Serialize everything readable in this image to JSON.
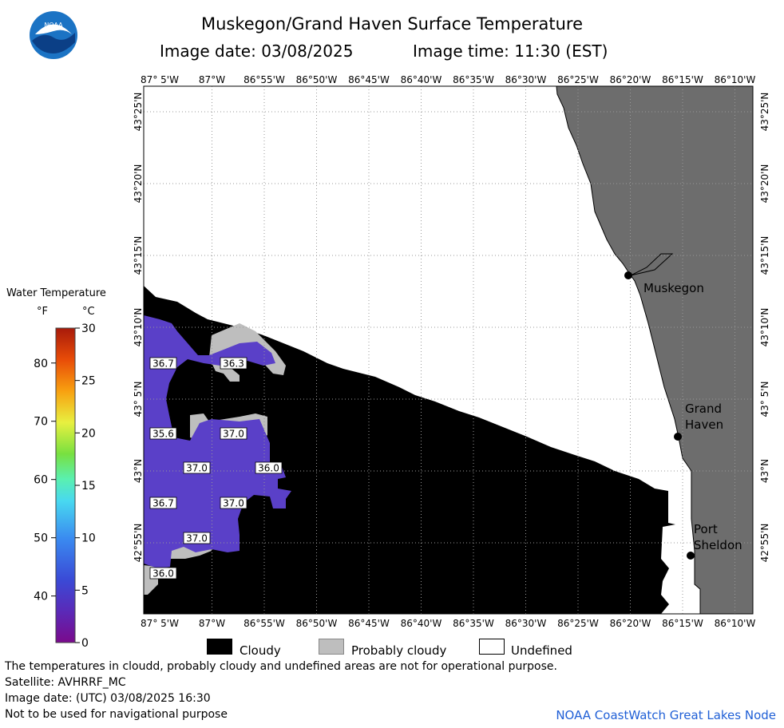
{
  "header": {
    "title": "Muskegon/Grand Haven Surface Temperature",
    "image_date": "Image date: 03/08/2025",
    "image_time": "Image time: 11:30 (EST)"
  },
  "logo": {
    "text": "NOAA"
  },
  "legend": {
    "title": "Water Temperature",
    "unit_f": "°F",
    "unit_c": "°C",
    "f_ticks": [
      "80",
      "70",
      "60",
      "50",
      "40"
    ],
    "c_ticks": [
      "30",
      "25",
      "20",
      "15",
      "10",
      "5",
      "0"
    ]
  },
  "map": {
    "lon_labels": [
      "87° 5'W",
      "87°W",
      "86°55'W",
      "86°50'W",
      "86°45'W",
      "86°40'W",
      "86°35'W",
      "86°30'W",
      "86°25'W",
      "86°20'W",
      "86°15'W",
      "86°10'W"
    ],
    "lat_labels": [
      "43°25'N",
      "43°20'N",
      "43°15'N",
      "43°10'N",
      "43° 5'N",
      "43°N",
      "42°55'N"
    ],
    "places": [
      {
        "name": "Muskegon",
        "lines": [
          "Muskegon"
        ]
      },
      {
        "name": "Grand Haven",
        "lines": [
          "Grand",
          "Haven"
        ]
      },
      {
        "name": "Port Sheldon",
        "lines": [
          "Port",
          "Sheldon"
        ]
      }
    ],
    "temperature_labels": [
      "36.7",
      "36.3",
      "35.6",
      "37.0",
      "37.0",
      "36.0",
      "36.7",
      "37.0",
      "37.0",
      "36.0"
    ]
  },
  "key": {
    "cloudy": "Cloudy",
    "probably_cloudy": "Probably cloudy",
    "undefined": "Undefined"
  },
  "footer": {
    "line1": "The temperatures in cloudd, probably cloudy and undefined areas are not for operational purpose.",
    "line2": "Satellite: AVHRRF_MC",
    "line3": "Image date: (UTC) 03/08/2025  16:30",
    "line4": "Not to be used for navigational purpose",
    "credit": "NOAA CoastWatch Great Lakes Node"
  },
  "colors": {
    "land": "#6d6d6d",
    "cloud": "#000000",
    "probably_cloudy": "#bebebe",
    "water_37": "#5a40c8",
    "noaa_blue": "#1b73c4"
  }
}
